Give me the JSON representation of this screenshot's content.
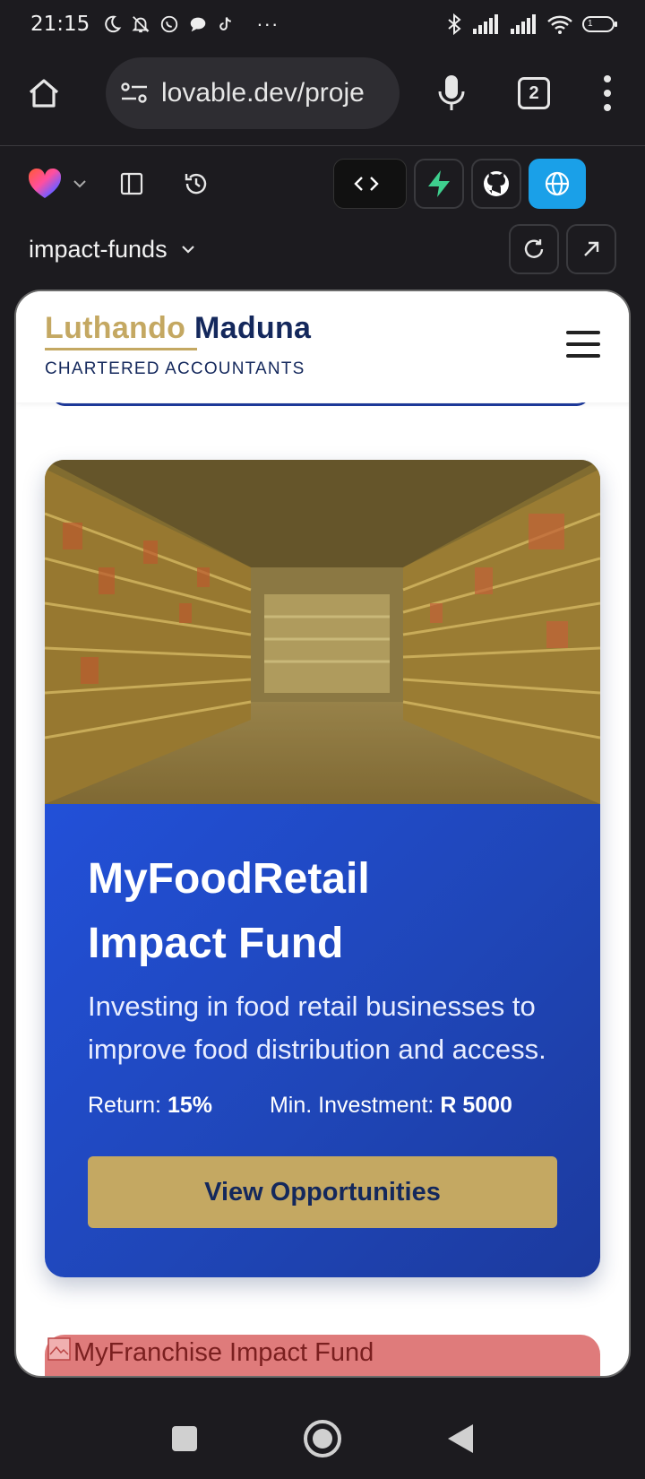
{
  "status_bar": {
    "time": "21:15",
    "icons": [
      "moon-icon",
      "bell-off-icon",
      "whatsapp-icon",
      "chat-icon",
      "tiktok-icon",
      "more-icon"
    ],
    "more": "···",
    "right_icons": [
      "bluetooth-icon",
      "signal-icon",
      "signal-icon",
      "wifi-icon",
      "battery-icon"
    ],
    "battery_level": "1"
  },
  "browser": {
    "url": "lovable.dev/proje",
    "tab_count": "2"
  },
  "lovable": {
    "project_name": "impact-funds",
    "accent_globe": "#1aa0e8",
    "accent_supabase": "#3ecf8e"
  },
  "site": {
    "brand_first": "Luthando",
    "brand_last": "Maduna",
    "brand_sub": "CHARTERED ACCOUNTANTS",
    "colors": {
      "gold": "#c4a862",
      "navy": "#14285c",
      "blue": "#2250d8"
    }
  },
  "fund": {
    "title_line1": "MyFoodRetail",
    "title_line2": "Impact Fund",
    "description": "Investing in food retail businesses to improve food distribution and access.",
    "return_label": "Return:",
    "return_value": "15%",
    "min_label": "Min. Investment:",
    "min_value": "R 5000",
    "cta_label": "View Opportunities"
  },
  "next_fund": {
    "alt_text": "MyFranchise Impact Fund"
  }
}
